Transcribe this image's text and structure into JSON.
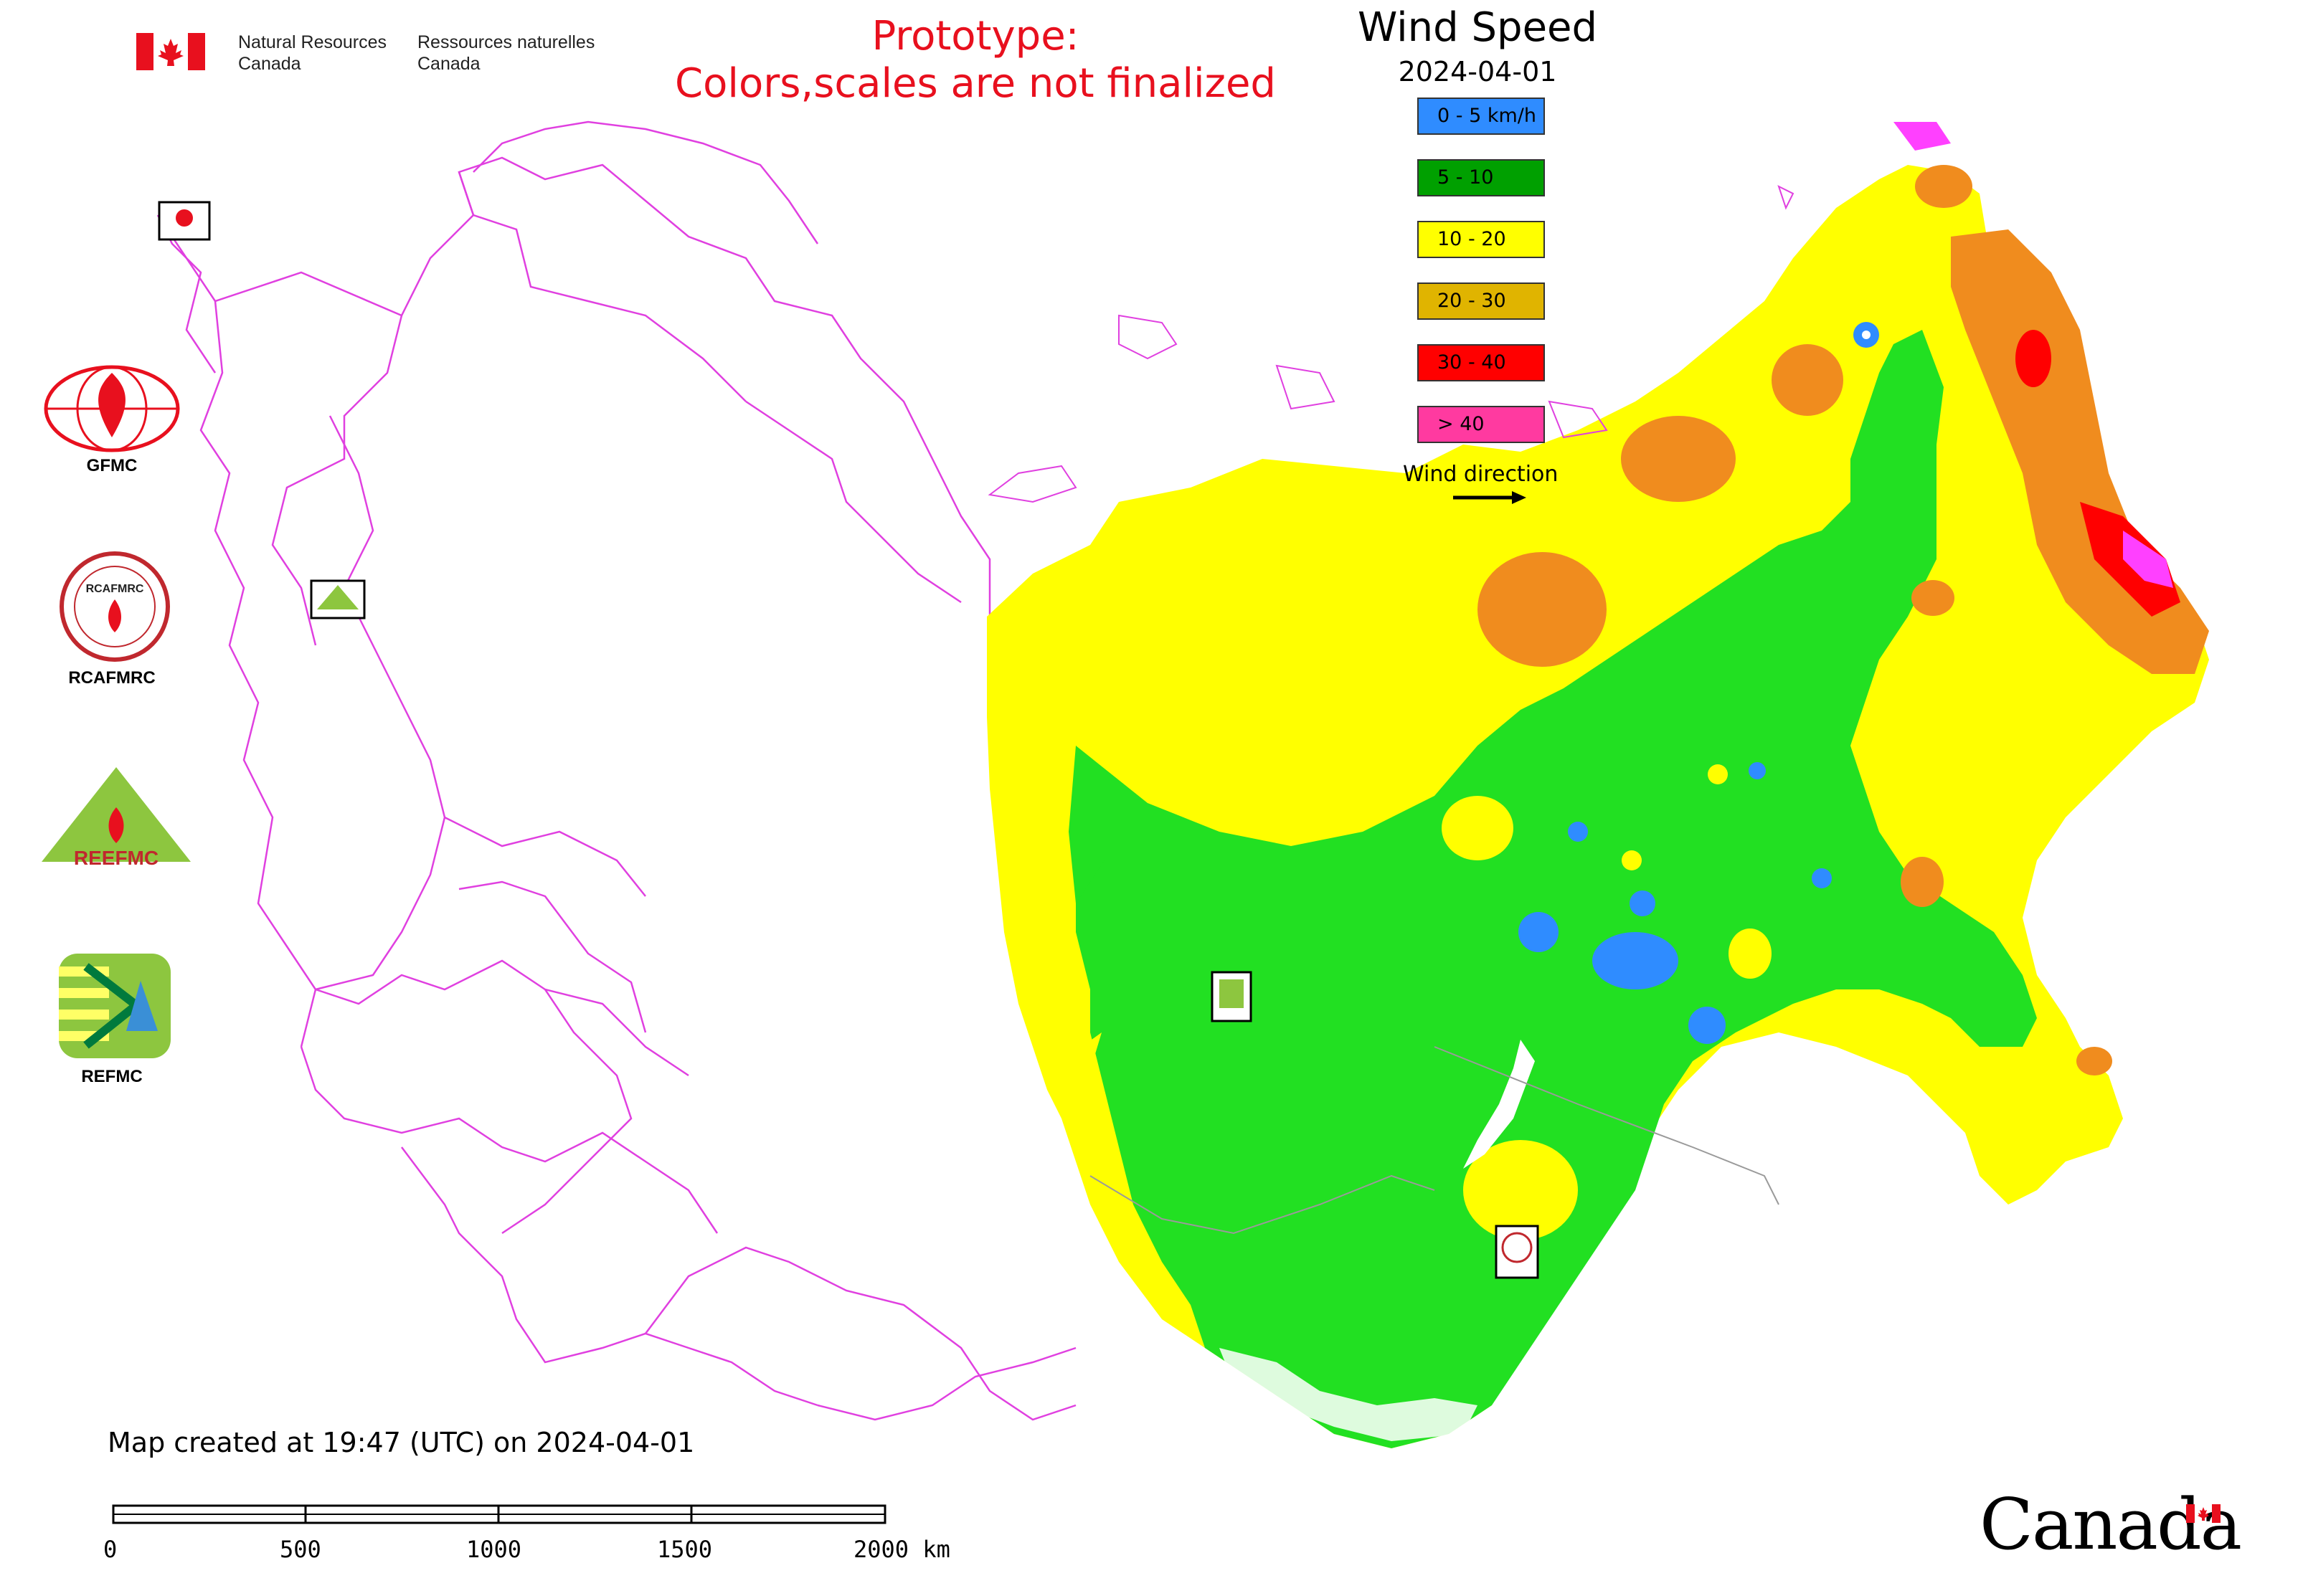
{
  "header": {
    "agency_en_line1": "Natural Resources",
    "agency_en_line2": "Canada",
    "agency_fr_line1": "Ressources naturelles",
    "agency_fr_line2": "Canada",
    "prototype_line1": "Prototype:",
    "prototype_line2": "Colors,scales are not finalized"
  },
  "map": {
    "title": "Wind Speed",
    "date": "2024-04-01"
  },
  "legend": {
    "items": [
      {
        "label": "0 - 5 km/h",
        "color": "#2f8cff"
      },
      {
        "label": "5 - 10",
        "color": "#00a000"
      },
      {
        "label": "10 - 20",
        "color": "#ffff00"
      },
      {
        "label": "20 - 30",
        "color": "#e0b400"
      },
      {
        "label": "30 - 40",
        "color": "#ff0000"
      },
      {
        "label": "> 40",
        "color": "#ff3aa0"
      }
    ],
    "wind_direction_label": "Wind direction"
  },
  "organizations": [
    {
      "label": "GFMC",
      "icon": "gfmc-logo-icon"
    },
    {
      "label": "RCAFMRC",
      "icon": "rcafmrc-logo-icon"
    },
    {
      "label": "",
      "icon": "reefmc-logo-icon"
    },
    {
      "label": "REFMC",
      "icon": "refmc-logo-icon"
    }
  ],
  "footer": {
    "created_text": "Map created at 19:47 (UTC) on 2024-04-01",
    "scale_labels": [
      "0",
      "500",
      "1000",
      "1500",
      "2000 km"
    ],
    "wordmark": "Canada"
  },
  "colors": {
    "border": "#e040e0",
    "wind_green": "#22e022",
    "wind_yellow": "#ffff00",
    "wind_orange": "#f08c1e",
    "wind_red": "#ff0000",
    "wind_magenta": "#ff40ff",
    "wind_blue": "#2f8cff"
  }
}
